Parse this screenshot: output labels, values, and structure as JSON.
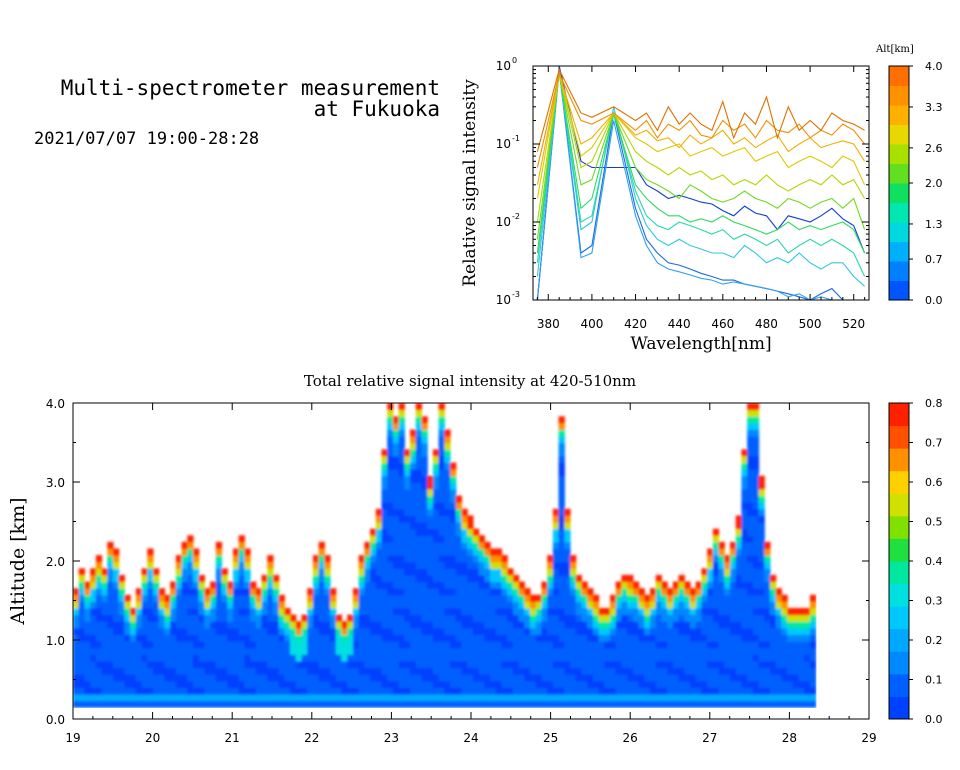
{
  "header": {
    "title_line1": "Multi-spectrometer measurement",
    "title_line2": "at Fukuoka",
    "datetime": "2021/07/07 19:00-28:28"
  },
  "colors": {
    "spectrum_scale": [
      "#0055ff",
      "#0080ff",
      "#00b0ff",
      "#00d8e0",
      "#00e8b0",
      "#10e060",
      "#60e020",
      "#a8e000",
      "#e8d800",
      "#ffb000",
      "#ff9000",
      "#ff7000"
    ],
    "intensity_scale": [
      "#0040ff",
      "#0060ff",
      "#0088ff",
      "#00a8ff",
      "#00c8ff",
      "#00e0e0",
      "#00e8a0",
      "#20e040",
      "#80e000",
      "#d0e000",
      "#ffd000",
      "#ff9000",
      "#ff5000",
      "#ff2000"
    ]
  },
  "chart_data": [
    {
      "type": "line",
      "xlabel": "Wavelength[nm]",
      "ylabel": "Relative signal intensity",
      "y_scale": "log",
      "xlim": [
        373,
        527
      ],
      "ylim": [
        0.001,
        1
      ],
      "x_ticks": [
        "380",
        "400",
        "420",
        "440",
        "460",
        "480",
        "500",
        "520"
      ],
      "x_tick_values": [
        380,
        400,
        420,
        440,
        460,
        480,
        500,
        520
      ],
      "y_ticks": [
        {
          "base": "10",
          "exp": "0"
        },
        {
          "base": "10",
          "exp": "-1"
        },
        {
          "base": "10",
          "exp": "-2"
        },
        {
          "base": "10",
          "exp": "-3"
        }
      ],
      "y_tick_values": [
        1,
        0.1,
        0.01,
        0.001
      ],
      "x": [
        375,
        385,
        395,
        400,
        410,
        420,
        425,
        430,
        435,
        440,
        445,
        450,
        455,
        460,
        465,
        470,
        475,
        480,
        485,
        490,
        495,
        500,
        505,
        510,
        515,
        520,
        525
      ],
      "series": [
        {
          "alt": 0.0,
          "color": "#1040d0",
          "values": [
            0.001,
            1.0,
            0.06,
            0.05,
            0.05,
            0.05,
            0.03,
            0.025,
            0.02,
            0.022,
            0.02,
            0.018,
            0.017,
            0.014,
            0.012,
            0.016,
            0.013,
            0.012,
            0.008,
            0.012,
            0.011,
            0.01,
            0.012,
            0.015,
            0.011,
            0.009,
            0.004
          ]
        },
        {
          "alt": 0.3,
          "color": "#1c6ae0",
          "values": [
            0.001,
            0.9,
            0.004,
            0.005,
            0.25,
            0.015,
            0.006,
            0.004,
            0.003,
            0.0028,
            0.0025,
            0.0022,
            0.002,
            0.0018,
            0.0018,
            0.0016,
            0.0015,
            0.0014,
            0.0013,
            0.0012,
            0.0011,
            0.001,
            0.0012,
            0.0014,
            0.001,
            0.001,
            0.001
          ]
        },
        {
          "alt": 0.7,
          "color": "#30a0f0",
          "values": [
            0.001,
            0.9,
            0.0035,
            0.004,
            0.2,
            0.012,
            0.005,
            0.003,
            0.0025,
            0.0023,
            0.0021,
            0.0019,
            0.0018,
            0.0016,
            0.0017,
            0.0016,
            0.0015,
            0.0014,
            0.0013,
            0.0011,
            0.0012,
            0.001,
            0.0011,
            0.001,
            0.001,
            0.001,
            0.001
          ]
        },
        {
          "alt": 1.0,
          "color": "#30c8e0",
          "values": [
            0.002,
            0.85,
            0.008,
            0.01,
            0.3,
            0.02,
            0.009,
            0.006,
            0.005,
            0.006,
            0.005,
            0.0045,
            0.004,
            0.004,
            0.0035,
            0.005,
            0.004,
            0.003,
            0.0035,
            0.003,
            0.004,
            0.003,
            0.0025,
            0.003,
            0.003,
            0.002,
            0.0015
          ]
        },
        {
          "alt": 1.3,
          "color": "#28d8a8",
          "values": [
            0.003,
            0.85,
            0.01,
            0.012,
            0.25,
            0.025,
            0.012,
            0.009,
            0.008,
            0.01,
            0.009,
            0.008,
            0.007,
            0.008,
            0.006,
            0.007,
            0.006,
            0.005,
            0.006,
            0.004,
            0.005,
            0.006,
            0.005,
            0.006,
            0.005,
            0.004,
            0.002
          ]
        },
        {
          "alt": 1.6,
          "color": "#30d860",
          "values": [
            0.004,
            0.8,
            0.015,
            0.02,
            0.25,
            0.03,
            0.02,
            0.015,
            0.012,
            0.012,
            0.01,
            0.011,
            0.01,
            0.012,
            0.01,
            0.009,
            0.008,
            0.007,
            0.008,
            0.01,
            0.008,
            0.009,
            0.008,
            0.009,
            0.01,
            0.008,
            0.004
          ]
        },
        {
          "alt": 2.0,
          "color": "#70d820",
          "values": [
            0.006,
            0.8,
            0.03,
            0.035,
            0.25,
            0.05,
            0.035,
            0.03,
            0.025,
            0.02,
            0.03,
            0.025,
            0.02,
            0.018,
            0.02,
            0.025,
            0.02,
            0.018,
            0.015,
            0.02,
            0.018,
            0.015,
            0.018,
            0.02,
            0.015,
            0.02,
            0.008
          ]
        },
        {
          "alt": 2.3,
          "color": "#b0d800",
          "values": [
            0.01,
            0.8,
            0.05,
            0.06,
            0.25,
            0.08,
            0.06,
            0.05,
            0.04,
            0.05,
            0.04,
            0.045,
            0.035,
            0.04,
            0.03,
            0.035,
            0.03,
            0.04,
            0.03,
            0.025,
            0.03,
            0.035,
            0.03,
            0.04,
            0.03,
            0.035,
            0.02
          ]
        },
        {
          "alt": 2.6,
          "color": "#e0c800",
          "values": [
            0.02,
            0.8,
            0.07,
            0.09,
            0.25,
            0.12,
            0.1,
            0.08,
            0.09,
            0.1,
            0.07,
            0.08,
            0.09,
            0.07,
            0.08,
            0.09,
            0.06,
            0.07,
            0.08,
            0.05,
            0.06,
            0.07,
            0.06,
            0.05,
            0.07,
            0.06,
            0.03
          ]
        },
        {
          "alt": 3.0,
          "color": "#f0b000",
          "values": [
            0.03,
            0.8,
            0.1,
            0.12,
            0.25,
            0.13,
            0.15,
            0.11,
            0.12,
            0.09,
            0.13,
            0.1,
            0.12,
            0.15,
            0.1,
            0.12,
            0.09,
            0.11,
            0.13,
            0.08,
            0.1,
            0.12,
            0.09,
            0.1,
            0.11,
            0.1,
            0.06
          ]
        },
        {
          "alt": 3.3,
          "color": "#f09000",
          "values": [
            0.05,
            0.8,
            0.2,
            0.18,
            0.25,
            0.15,
            0.2,
            0.12,
            0.18,
            0.15,
            0.2,
            0.13,
            0.12,
            0.2,
            0.15,
            0.18,
            0.12,
            0.2,
            0.15,
            0.14,
            0.18,
            0.12,
            0.15,
            0.13,
            0.18,
            0.15,
            0.1
          ]
        },
        {
          "alt": 3.7,
          "color": "#e07000",
          "values": [
            0.08,
            0.9,
            0.25,
            0.22,
            0.3,
            0.2,
            0.25,
            0.15,
            0.3,
            0.18,
            0.25,
            0.18,
            0.15,
            0.35,
            0.12,
            0.25,
            0.18,
            0.4,
            0.12,
            0.3,
            0.15,
            0.2,
            0.15,
            0.25,
            0.2,
            0.18,
            0.15
          ]
        }
      ],
      "colorbar": {
        "label": "Alt[km]",
        "ticks": [
          "0.0",
          "0.7",
          "1.3",
          "2.0",
          "2.6",
          "3.3",
          "4.0"
        ],
        "range": [
          0,
          4
        ]
      }
    },
    {
      "type": "heatmap",
      "title": "Total relative signal intensity at 420-510nm",
      "ylabel": "Altitude [km]",
      "xlim": [
        19,
        29
      ],
      "ylim": [
        0,
        4
      ],
      "x_ticks": [
        "19",
        "20",
        "21",
        "22",
        "23",
        "24",
        "25",
        "26",
        "27",
        "28",
        "29"
      ],
      "x_tick_values": [
        19,
        20,
        21,
        22,
        23,
        24,
        25,
        26,
        27,
        28,
        29
      ],
      "y_ticks": [
        "0.0",
        "1.0",
        "2.0",
        "3.0",
        "4.0"
      ],
      "y_tick_values": [
        0,
        1,
        2,
        3,
        4
      ],
      "data_x_range": [
        19.0,
        28.33
      ],
      "data_y_bottom": 0.15,
      "top_km": [
        1.6,
        1.9,
        1.7,
        1.85,
        2.0,
        1.9,
        2.2,
        2.1,
        1.8,
        1.55,
        1.4,
        1.6,
        1.9,
        2.1,
        1.9,
        1.6,
        1.5,
        1.7,
        2.0,
        2.2,
        2.3,
        2.1,
        1.8,
        1.6,
        1.7,
        2.2,
        1.9,
        1.7,
        2.1,
        2.3,
        2.1,
        1.7,
        1.6,
        1.8,
        2.0,
        1.8,
        1.5,
        1.4,
        1.3,
        1.2,
        1.3,
        1.6,
        2.0,
        2.2,
        2.0,
        1.6,
        1.3,
        1.2,
        1.3,
        1.6,
        2.0,
        2.2,
        2.4,
        2.6,
        3.4,
        4.0,
        3.8,
        4.0,
        3.4,
        3.6,
        4.0,
        3.8,
        3.0,
        3.4,
        4.0,
        3.6,
        3.2,
        2.8,
        2.6,
        2.5,
        2.4,
        2.3,
        2.2,
        2.1,
        2.1,
        2.0,
        1.9,
        1.8,
        1.7,
        1.6,
        1.5,
        1.55,
        1.7,
        2.0,
        2.6,
        3.8,
        2.6,
        2.0,
        1.8,
        1.7,
        1.6,
        1.5,
        1.4,
        1.4,
        1.5,
        1.7,
        1.8,
        1.75,
        1.7,
        1.6,
        1.5,
        1.6,
        1.8,
        1.7,
        1.6,
        1.7,
        1.8,
        1.7,
        1.6,
        1.7,
        1.9,
        2.1,
        2.4,
        2.2,
        2.0,
        2.2,
        2.5,
        3.4,
        4.0,
        4.0,
        3.0,
        2.2,
        1.8,
        1.6,
        1.5,
        1.4,
        1.4,
        1.4,
        1.4,
        1.5
      ],
      "colorbar": {
        "ticks": [
          "0.0",
          "0.1",
          "0.2",
          "0.3",
          "0.4",
          "0.5",
          "0.6",
          "0.7",
          "0.8"
        ],
        "range": [
          0,
          0.8
        ]
      }
    }
  ]
}
